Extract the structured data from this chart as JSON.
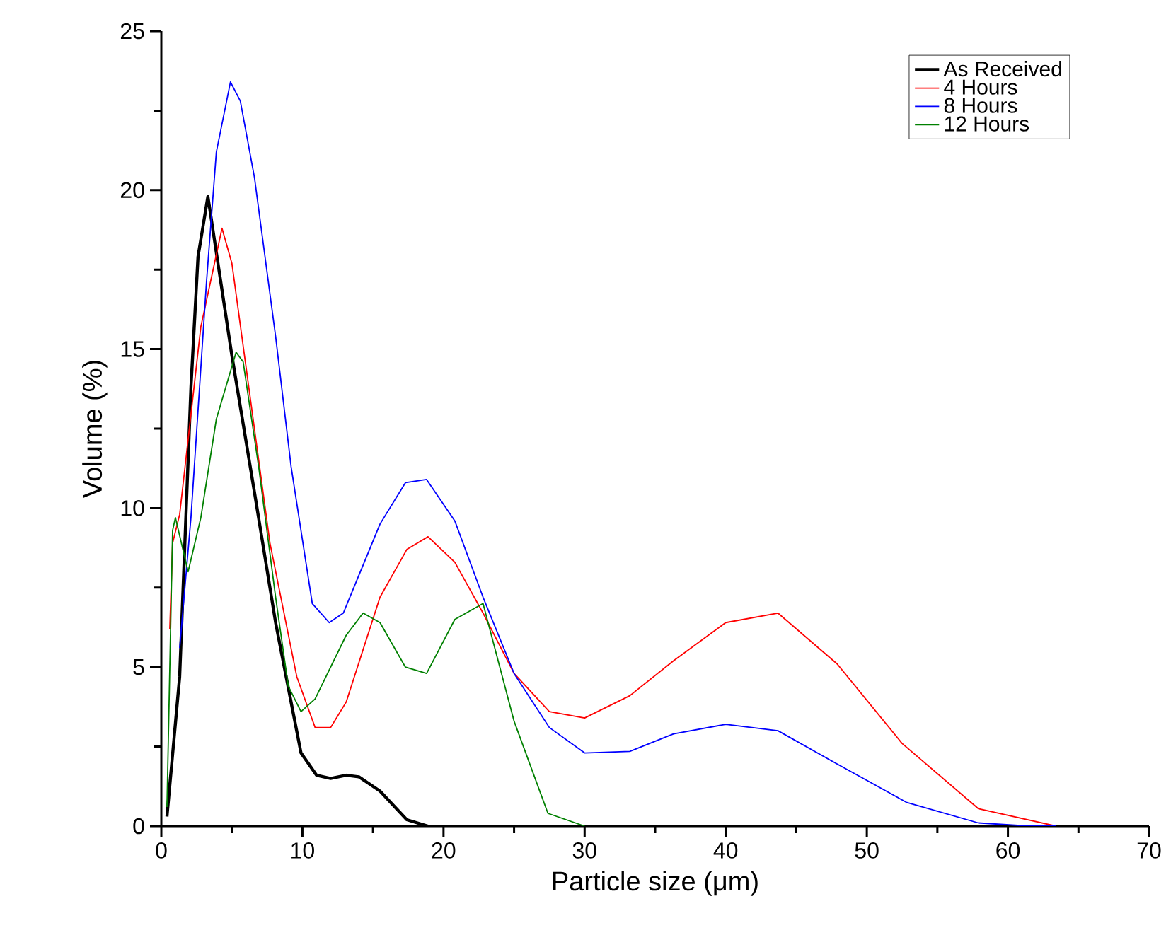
{
  "chart_data": {
    "type": "line",
    "xlabel": "Particle size (μm)",
    "ylabel": "Volume (%)",
    "xlim": [
      0,
      70
    ],
    "ylim": [
      0,
      25
    ],
    "xticks": [
      0,
      10,
      20,
      30,
      40,
      50,
      60,
      70
    ],
    "yticks": [
      0,
      5,
      10,
      15,
      20,
      25
    ],
    "grid": false,
    "legend": "top right",
    "marker": "none",
    "line_style": "solid",
    "series": [
      {
        "name": "As Received",
        "color": "#000000",
        "x": [
          0.4,
          1.3,
          2.1,
          2.6,
          3.3,
          5.0,
          6.6,
          8.1,
          9.9,
          11.0,
          12.0,
          13.1,
          14.0,
          15.5,
          17.4,
          18.9
        ],
        "values": [
          0.3,
          4.7,
          13.8,
          17.9,
          19.8,
          14.8,
          10.5,
          6.4,
          2.3,
          1.6,
          1.5,
          1.6,
          1.55,
          1.1,
          0.2,
          0
        ]
      },
      {
        "name": "4 Hours",
        "color": "#ff0000",
        "x": [
          0.6,
          0.8,
          1.3,
          2.8,
          4.3,
          5.0,
          6.2,
          7.7,
          9.6,
          10.9,
          12.0,
          13.1,
          15.5,
          17.4,
          18.9,
          20.8,
          22.8,
          25.0,
          27.5,
          30.0,
          33.2,
          36.3,
          40.0,
          43.7,
          47.9,
          52.5,
          57.9,
          63.4
        ],
        "values": [
          6.2,
          8.9,
          9.8,
          15.7,
          18.8,
          17.7,
          13.8,
          8.9,
          4.7,
          3.1,
          3.1,
          3.9,
          7.2,
          8.7,
          9.1,
          8.3,
          6.7,
          4.8,
          3.6,
          3.4,
          4.1,
          5.2,
          6.4,
          6.7,
          5.1,
          2.6,
          0.55,
          0
        ]
      },
      {
        "name": "8 Hours",
        "color": "#0000ff",
        "x": [
          1.3,
          2.1,
          3.2,
          3.9,
          4.9,
          5.6,
          6.6,
          8.1,
          9.2,
          10.7,
          11.9,
          12.9,
          15.5,
          17.3,
          18.8,
          20.8,
          22.8,
          25.0,
          27.5,
          30.0,
          33.2,
          36.3,
          40.0,
          43.7,
          47.7,
          52.8,
          57.9,
          61.5,
          63.4
        ],
        "values": [
          5.6,
          9.7,
          17.1,
          21.2,
          23.4,
          22.8,
          20.4,
          15.4,
          11.3,
          7.0,
          6.4,
          6.7,
          9.5,
          10.8,
          10.9,
          9.6,
          7.2,
          4.8,
          3.1,
          2.3,
          2.35,
          2.9,
          3.2,
          3.0,
          2.0,
          0.75,
          0.1,
          0,
          0
        ]
      },
      {
        "name": "12 Hours",
        "color": "#008000",
        "x": [
          0.4,
          0.8,
          1.0,
          1.9,
          2.8,
          3.9,
          5.3,
          5.8,
          6.9,
          8.1,
          9.0,
          9.9,
          10.9,
          13.1,
          14.3,
          15.5,
          17.3,
          18.8,
          20.8,
          22.8,
          25.0,
          27.4,
          30.0
        ],
        "values": [
          0.6,
          9.3,
          9.7,
          8.0,
          9.7,
          12.8,
          14.9,
          14.6,
          11.3,
          7.2,
          4.4,
          3.6,
          4.0,
          6.0,
          6.7,
          6.4,
          5.0,
          4.8,
          6.5,
          7.0,
          3.3,
          0.4,
          0
        ]
      }
    ]
  }
}
